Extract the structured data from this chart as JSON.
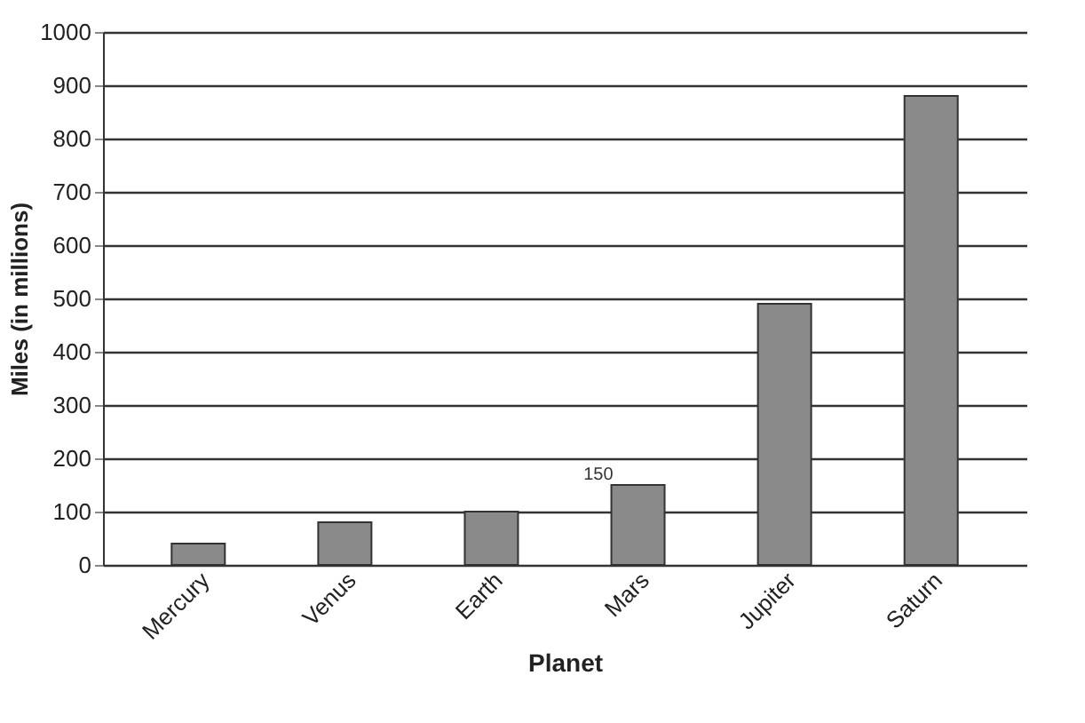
{
  "chart_data": {
    "type": "bar",
    "xlabel": "Planet",
    "ylabel": "Miles (in millions)",
    "categories": [
      "Mercury",
      "Venus",
      "Earth",
      "Mars",
      "Jupiter",
      "Saturn"
    ],
    "values": [
      40,
      80,
      100,
      150,
      490,
      880
    ],
    "color": "#8a8a8a",
    "ylim": [
      0,
      1000
    ],
    "yticks": [
      0,
      100,
      200,
      300,
      400,
      500,
      600,
      700,
      800,
      900,
      1000
    ],
    "grid": "y",
    "annotations": [
      {
        "text": "150",
        "x": "Mars",
        "y": 150
      }
    ]
  }
}
